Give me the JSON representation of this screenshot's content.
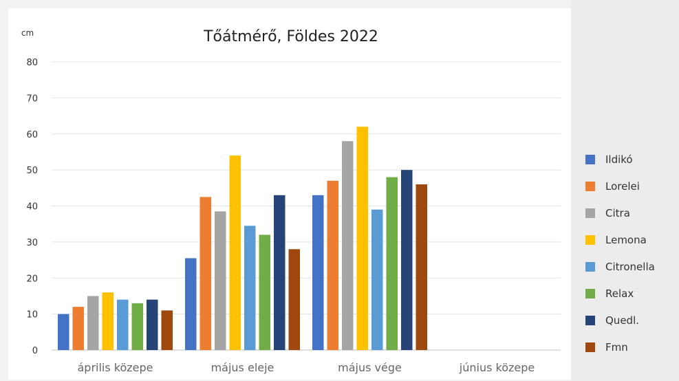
{
  "chart_data": {
    "type": "bar",
    "title": "Tőátmérő, Földes 2022",
    "ylabel": "cm",
    "xlabel": "",
    "ylim": [
      0,
      80
    ],
    "yticks": [
      0,
      10,
      20,
      30,
      40,
      50,
      60,
      70,
      80
    ],
    "grid": true,
    "legend_position": "right",
    "categories": [
      "április közepe",
      "május eleje",
      "május vége",
      "június közepe"
    ],
    "series": [
      {
        "name": "Ildikó",
        "color": "#4472c4",
        "values": [
          10,
          25.5,
          43,
          null
        ]
      },
      {
        "name": "Lorelei",
        "color": "#ed7d31",
        "values": [
          12,
          42.5,
          47,
          null
        ]
      },
      {
        "name": "Citra",
        "color": "#a5a5a5",
        "values": [
          15,
          38.5,
          58,
          null
        ]
      },
      {
        "name": "Lemona",
        "color": "#ffc000",
        "values": [
          16,
          54,
          62,
          null
        ]
      },
      {
        "name": "Citronella",
        "color": "#5b9bd5",
        "values": [
          14,
          34.5,
          39,
          null
        ]
      },
      {
        "name": "Relax",
        "color": "#70ad47",
        "values": [
          13,
          32,
          48,
          null
        ]
      },
      {
        "name": "Quedl.",
        "color": "#264478",
        "values": [
          14,
          43,
          50,
          null
        ]
      },
      {
        "name": "Fmn",
        "color": "#9e480e",
        "values": [
          11,
          28,
          46,
          null
        ]
      }
    ]
  }
}
